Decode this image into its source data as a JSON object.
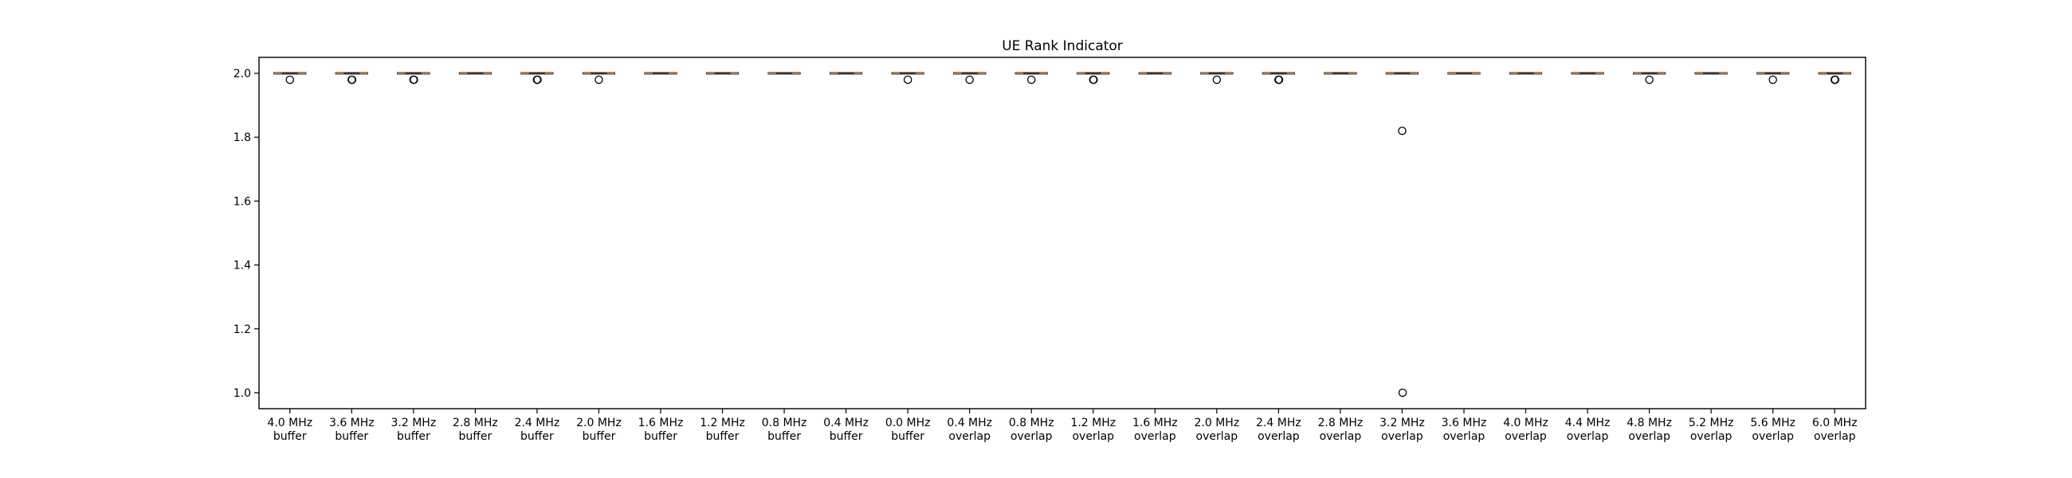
{
  "chart_data": {
    "type": "box",
    "title": "UE Rank Indicator",
    "xlabel": "",
    "ylabel": "",
    "ylim": [
      0.95,
      2.05
    ],
    "yticks": [
      1.0,
      1.2,
      1.4,
      1.6,
      1.8,
      2.0
    ],
    "ytick_labels": [
      "1.0",
      "1.2",
      "1.4",
      "1.6",
      "1.8",
      "2.0"
    ],
    "grid": false,
    "colors": {
      "median": "#ff7f0e",
      "box": "#000000",
      "flier": "#000000"
    },
    "categories": [
      [
        "4.0 MHz",
        "buffer"
      ],
      [
        "3.6 MHz",
        "buffer"
      ],
      [
        "3.2 MHz",
        "buffer"
      ],
      [
        "2.8 MHz",
        "buffer"
      ],
      [
        "2.4 MHz",
        "buffer"
      ],
      [
        "2.0 MHz",
        "buffer"
      ],
      [
        "1.6 MHz",
        "buffer"
      ],
      [
        "1.2 MHz",
        "buffer"
      ],
      [
        "0.8 MHz",
        "buffer"
      ],
      [
        "0.4 MHz",
        "buffer"
      ],
      [
        "0.0 MHz",
        "buffer"
      ],
      [
        "0.4 MHz",
        "overlap"
      ],
      [
        "0.8 MHz",
        "overlap"
      ],
      [
        "1.2 MHz",
        "overlap"
      ],
      [
        "1.6 MHz",
        "overlap"
      ],
      [
        "2.0 MHz",
        "overlap"
      ],
      [
        "2.4 MHz",
        "overlap"
      ],
      [
        "2.8 MHz",
        "overlap"
      ],
      [
        "3.2 MHz",
        "overlap"
      ],
      [
        "3.6 MHz",
        "overlap"
      ],
      [
        "4.0 MHz",
        "overlap"
      ],
      [
        "4.4 MHz",
        "overlap"
      ],
      [
        "4.8 MHz",
        "overlap"
      ],
      [
        "5.2 MHz",
        "overlap"
      ],
      [
        "5.6 MHz",
        "overlap"
      ],
      [
        "6.0 MHz",
        "overlap"
      ]
    ],
    "box_stats": {
      "q1": 2.0,
      "median": 2.0,
      "q3": 2.0,
      "whisker_low": 2.0,
      "whisker_high": 2.0
    },
    "outliers": [
      [
        1.98
      ],
      [
        1.98,
        1.98
      ],
      [
        1.98,
        1.98
      ],
      [],
      [
        1.98,
        1.98,
        1.98
      ],
      [
        1.98
      ],
      [],
      [],
      [],
      [],
      [
        1.98
      ],
      [
        1.98
      ],
      [
        1.98
      ],
      [
        1.98,
        1.98
      ],
      [],
      [
        1.98
      ],
      [
        1.98,
        1.98,
        1.98
      ],
      [],
      [
        1.82,
        1.0
      ],
      [],
      [],
      [],
      [
        1.98
      ],
      [],
      [
        1.98
      ],
      [
        1.98,
        1.98,
        1.98
      ]
    ]
  }
}
